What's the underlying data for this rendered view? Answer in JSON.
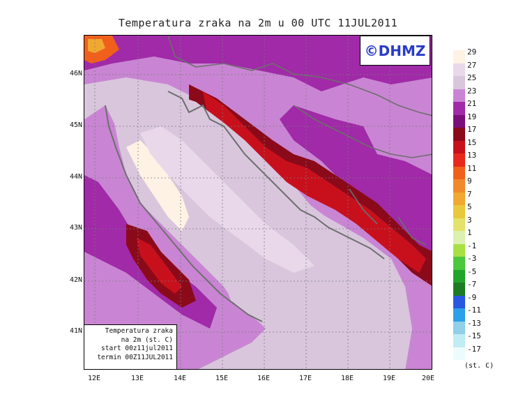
{
  "title": "Temperatura zraka na 2m u 00 UTC 11JUL2011",
  "logo": "©DHMZ",
  "info_box": {
    "line1": "Temperatura zraka",
    "line2": "na 2m (st. C)",
    "line3": "start 00z11jul2011",
    "line4": "termin 00Z11JUL2011"
  },
  "latitude_labels": [
    "46N",
    "45N",
    "44N",
    "43N",
    "42N",
    "41N"
  ],
  "longitude_labels": [
    "12E",
    "13E",
    "14E",
    "15E",
    "16E",
    "17E",
    "18E",
    "19E",
    "20E"
  ],
  "legend": {
    "values": [
      "29",
      "27",
      "25",
      "23",
      "21",
      "19",
      "17",
      "15",
      "13",
      "11",
      "9",
      "7",
      "5",
      "3",
      "1",
      "-1",
      "-3",
      "-5",
      "-7",
      "-9",
      "-11",
      "-13",
      "-15",
      "-17"
    ],
    "colors": [
      "#fdf2e4",
      "#e8d8ea",
      "#d9c6dd",
      "#c985d3",
      "#a02aa8",
      "#7a0e7a",
      "#8b0a1a",
      "#c8101c",
      "#e8281c",
      "#f0601c",
      "#f08a2c",
      "#f0a830",
      "#e8c83c",
      "#e4e26a",
      "#dcf0b0",
      "#a8e044",
      "#4cc83c",
      "#20a42c",
      "#1c7c24",
      "#2858e0",
      "#2ca0e8",
      "#90d0e8",
      "#c0ecf4",
      "#ecfcfc"
    ],
    "units": "(st. C)"
  },
  "colors": {
    "sea": "#d9c6dd",
    "warm_sea": "#fdf2e4",
    "land_base": "#c985d3",
    "land_dark": "#a02aa8",
    "mountain_red": "#c8101c",
    "mountain_darkred": "#8b0a1a",
    "coastline": "#6e6e6e",
    "logo_text": "#2a3cc8"
  }
}
